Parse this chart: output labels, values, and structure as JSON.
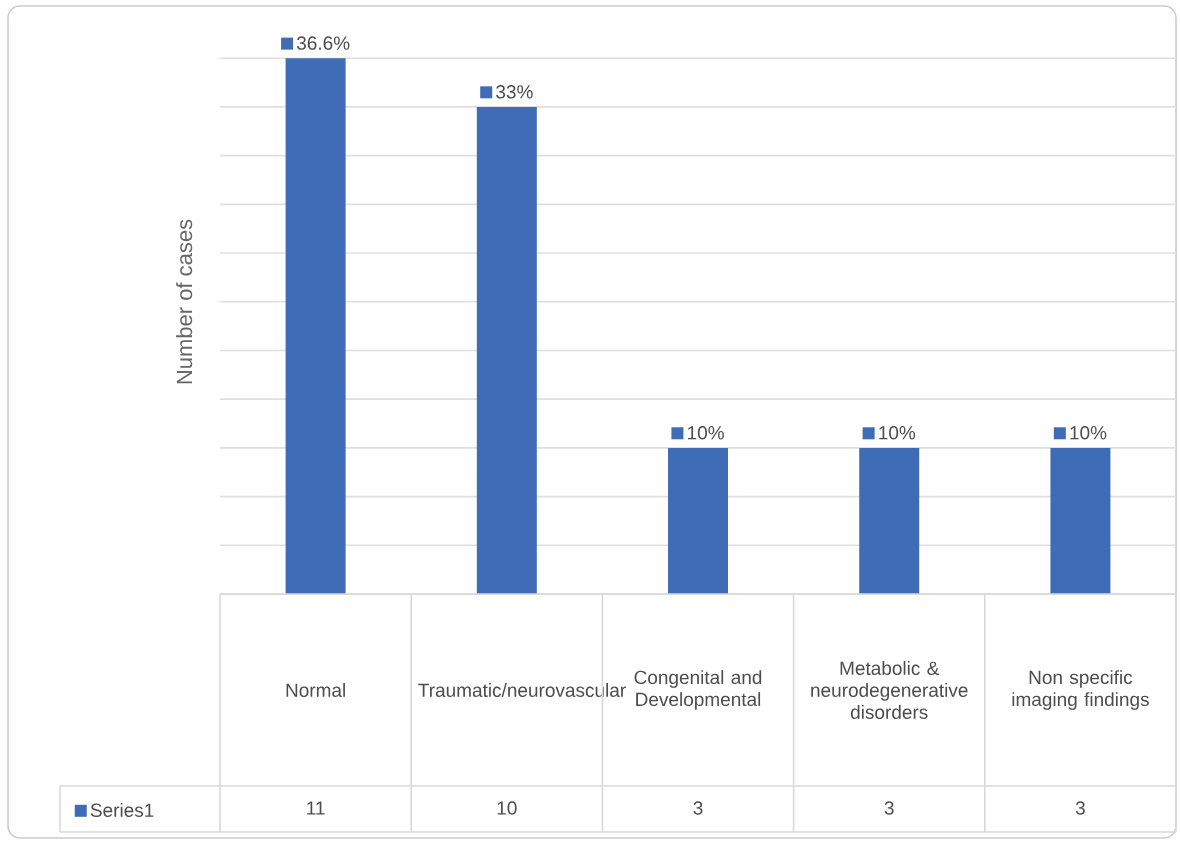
{
  "chart_data": {
    "type": "bar",
    "ylabel": "Number of cases",
    "categories": [
      "Normal",
      "Traumatic/neurovascular",
      "Congenital and Developmental",
      "Metabolic & neurodegenerative disorders",
      "Non specific imaging findings"
    ],
    "series": [
      {
        "name": "Series1",
        "color": "#3f6cb6",
        "values": [
          11,
          10,
          3,
          3,
          3
        ],
        "value_labels": [
          "11",
          "10",
          "3",
          "3",
          "3"
        ]
      }
    ],
    "annotations": [
      {
        "text": "36.6%",
        "x": "Normal",
        "y": 11
      },
      {
        "text": "33%",
        "x": "Traumatic/neurovascular",
        "y": 10
      },
      {
        "text": "10%",
        "x": "Congenital and Developmental",
        "y": 3
      },
      {
        "text": "10%",
        "x": "Metabolic & neurodegenerative disorders",
        "y": 3
      },
      {
        "text": "10%",
        "x": "Non specific imaging findings",
        "y": 3
      }
    ],
    "grid": "y",
    "tick_labels": "x",
    "legend": "bottom"
  }
}
